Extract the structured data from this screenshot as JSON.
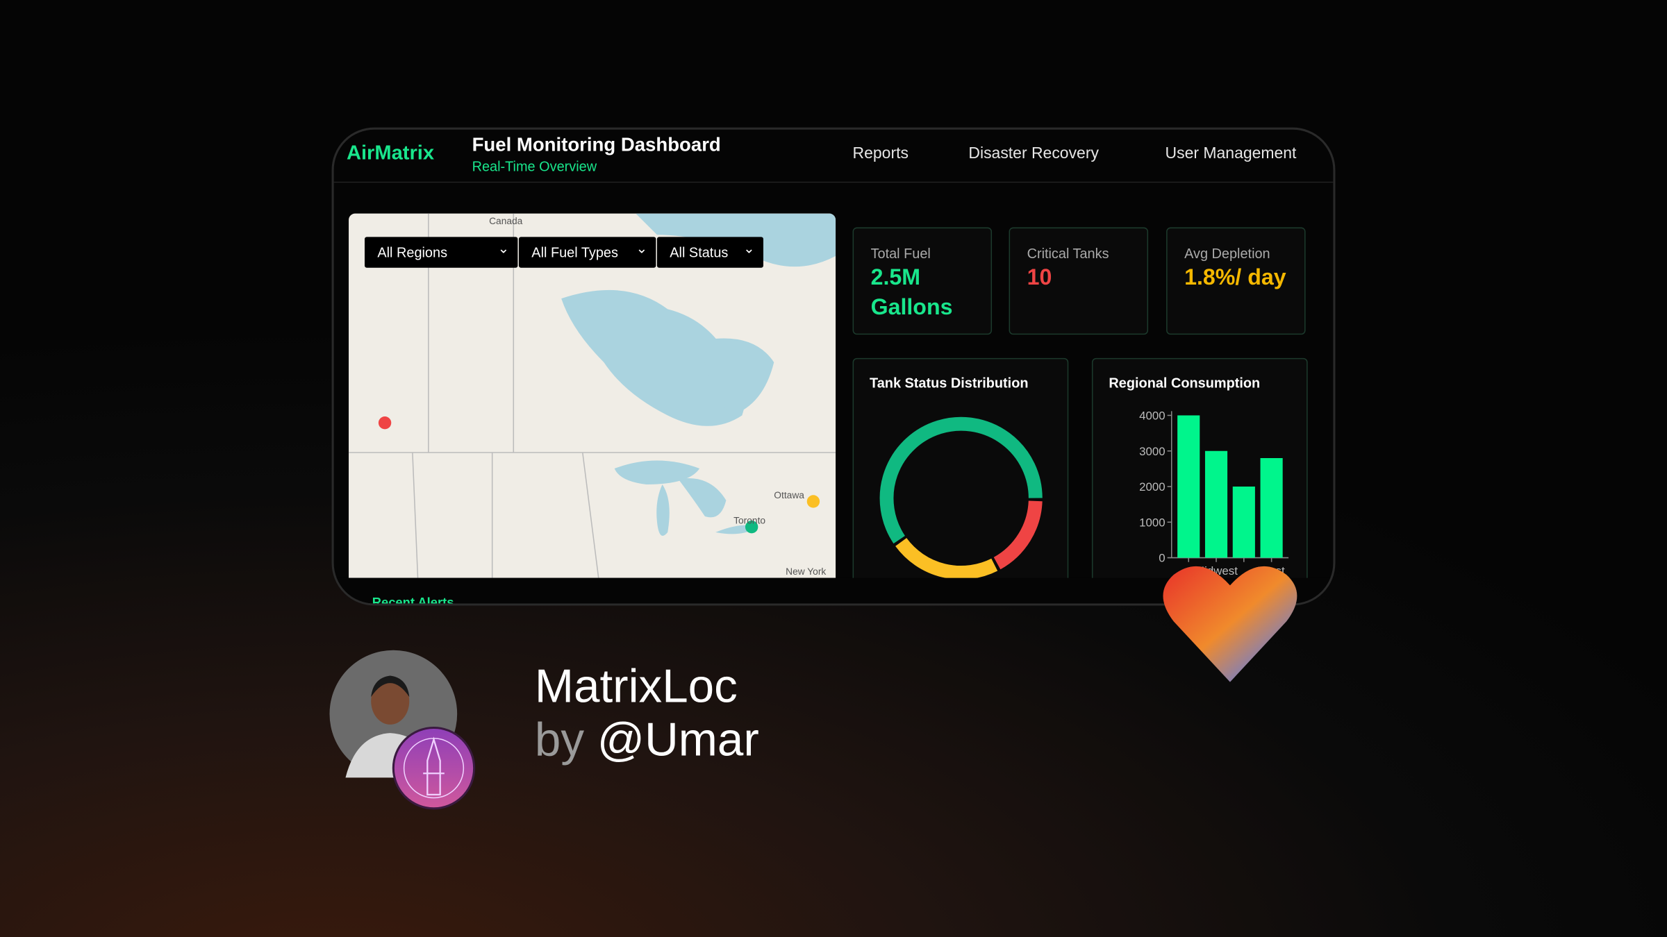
{
  "header": {
    "brand": "AirMatrix",
    "title": "Fuel Monitoring Dashboard",
    "subtitle": "Real-Time Overview",
    "nav": [
      "Reports",
      "Disaster Recovery",
      "User Management"
    ]
  },
  "filters": [
    "All Regions",
    "All Fuel Types",
    "All Status"
  ],
  "map": {
    "labels": [
      "Canada",
      "Ottawa",
      "Toronto",
      "New York"
    ]
  },
  "kpis": [
    {
      "label": "Total Fuel",
      "value": "2.5M Gallons",
      "color": "#19e68c"
    },
    {
      "label": "Critical Tanks",
      "value": "10",
      "color": "#ef4444"
    },
    {
      "label": "Avg Depletion",
      "value": "1.8%/ day",
      "color": "#f5b800"
    }
  ],
  "status_chart": {
    "type": "doughnut",
    "title": "Tank Status Distribution",
    "values": [
      60,
      17,
      23
    ],
    "colors": [
      "#10b981",
      "#ef4444",
      "#fbbf24"
    ]
  },
  "consumption_chart": {
    "type": "bar",
    "title": "Regional Consumption",
    "categories": [
      null,
      "Midwest",
      null,
      "West"
    ],
    "values": [
      4000,
      3000,
      2000,
      2800
    ],
    "color": "#00f58c",
    "ylim": [
      0,
      4000
    ],
    "yticks": [
      0,
      1000,
      2000,
      3000,
      4000
    ]
  },
  "alerts": {
    "title": "Recent Alerts"
  },
  "card": {
    "name": "MatrixLoc",
    "by": "by",
    "author": "@Umar"
  }
}
